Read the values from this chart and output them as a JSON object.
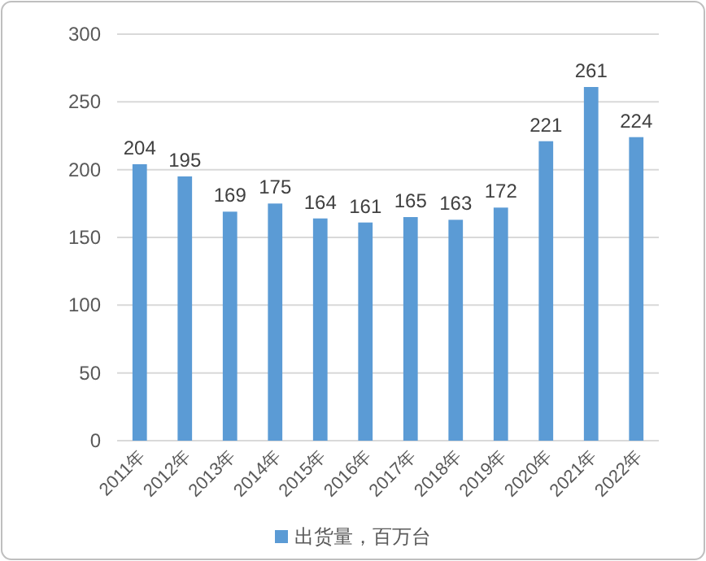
{
  "chart_data": {
    "type": "bar",
    "categories": [
      "2011年",
      "2012年",
      "2013年",
      "2014年",
      "2015年",
      "2016年",
      "2017年",
      "2018年",
      "2019年",
      "2020年",
      "2021年",
      "2022年"
    ],
    "series": [
      {
        "name": "出货量，百万台",
        "color": "#5b9bd5",
        "values": [
          204,
          195,
          169,
          175,
          164,
          161,
          165,
          163,
          172,
          221,
          261,
          224
        ]
      }
    ],
    "ylim": [
      0,
      300
    ],
    "yticks": [
      0,
      50,
      100,
      150,
      200,
      250,
      300
    ],
    "grid": "y",
    "data_labels": true,
    "legend": "bottom"
  }
}
